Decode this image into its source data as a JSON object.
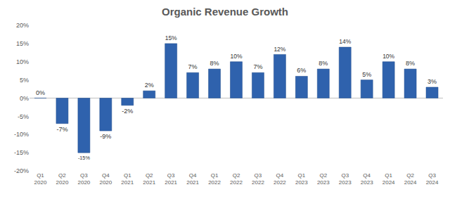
{
  "chart_data": {
    "type": "bar",
    "title": "Organic Revenue Growth",
    "categories": [
      "Q1 2020",
      "Q2 2020",
      "Q3 2020",
      "Q4 2020",
      "Q1 2021",
      "Q2 2021",
      "Q3 2021",
      "Q4 2021",
      "Q1 2022",
      "Q2 2022",
      "Q3 2022",
      "Q4 2022",
      "Q1 2023",
      "Q2 2023",
      "Q3 2023",
      "Q4 2023",
      "Q1 2024",
      "Q2 2024",
      "Q3 2024"
    ],
    "values": [
      0,
      -7,
      -15,
      -9,
      -2,
      2,
      15,
      7,
      8,
      10,
      7,
      12,
      6,
      8,
      14,
      5,
      10,
      8,
      3
    ],
    "value_labels": [
      "0%",
      "-7%",
      "-15%",
      "-9%",
      "-2%",
      "2%",
      "15%",
      "7%",
      "8%",
      "10%",
      "7%",
      "12%",
      "6%",
      "8%",
      "14%",
      "5%",
      "10%",
      "8%",
      "3%"
    ],
    "color": "#2f62ad",
    "ylim": [
      -20,
      20
    ],
    "yticks": [
      {
        "value": -20,
        "label": "-20%"
      },
      {
        "value": -15,
        "label": "-15%"
      },
      {
        "value": -10,
        "label": "-10%"
      },
      {
        "value": -5,
        "label": "-5%"
      },
      {
        "value": 0,
        "label": "0%"
      },
      {
        "value": 5,
        "label": "5%"
      },
      {
        "value": 10,
        "label": "10%"
      },
      {
        "value": 15,
        "label": "15%"
      },
      {
        "value": 20,
        "label": "20%"
      }
    ],
    "grid": false,
    "data_labels": true
  }
}
